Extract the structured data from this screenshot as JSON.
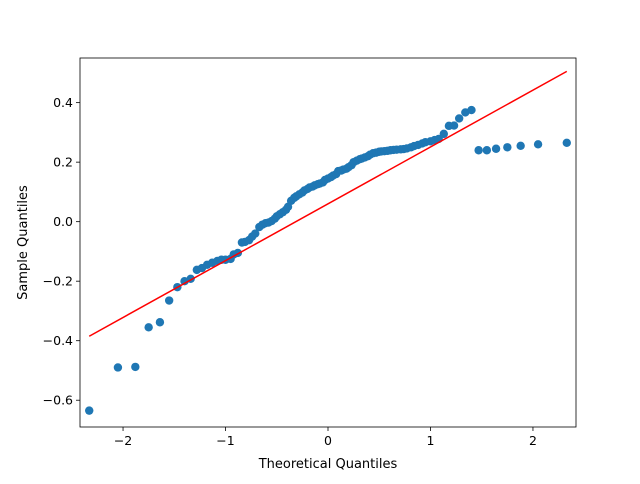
{
  "chart_data": {
    "type": "scatter",
    "title": "",
    "xlabel": "Theoretical Quantiles",
    "ylabel": "Sample Quantiles",
    "xlim": [
      -2.42,
      2.42
    ],
    "ylim": [
      -0.69,
      0.55
    ],
    "xticks": [
      -2,
      -1,
      0,
      1,
      2
    ],
    "xtick_labels": [
      "−2",
      "−1",
      "0",
      "1",
      "2"
    ],
    "yticks": [
      -0.6,
      -0.4,
      -0.2,
      0.0,
      0.2,
      0.4
    ],
    "ytick_labels": [
      "−0.6",
      "−0.4",
      "−0.2",
      "0.0",
      "0.2",
      "0.4"
    ],
    "grid": false,
    "legend": "none",
    "series": [
      {
        "kind": "points",
        "color": "#1f77b4",
        "x": [
          -2.33,
          -2.05,
          -1.88,
          -1.75,
          -1.64,
          -1.55,
          -1.47,
          -1.4,
          -1.34,
          -1.28,
          -1.23,
          -1.18,
          -1.13,
          -1.08,
          -1.04,
          -1.0,
          -0.95,
          -0.92,
          -0.88,
          -0.84,
          -0.81,
          -0.77,
          -0.74,
          -0.71,
          -0.67,
          -0.64,
          -0.61,
          -0.58,
          -0.55,
          -0.52,
          -0.5,
          -0.47,
          -0.44,
          -0.41,
          -0.39,
          -0.36,
          -0.33,
          -0.31,
          -0.28,
          -0.25,
          -0.23,
          -0.2,
          -0.18,
          -0.15,
          -0.13,
          -0.1,
          -0.08,
          -0.05,
          -0.03,
          0.0,
          0.03,
          0.05,
          0.08,
          0.1,
          0.13,
          0.15,
          0.18,
          0.2,
          0.23,
          0.25,
          0.28,
          0.31,
          0.33,
          0.36,
          0.39,
          0.41,
          0.44,
          0.47,
          0.5,
          0.52,
          0.55,
          0.58,
          0.61,
          0.64,
          0.67,
          0.71,
          0.74,
          0.77,
          0.81,
          0.84,
          0.88,
          0.92,
          0.95,
          1.0,
          1.04,
          1.08,
          1.13,
          1.18,
          1.23,
          1.28,
          1.34,
          1.4,
          1.47,
          1.55,
          1.64,
          1.75,
          1.88,
          2.05,
          2.33
        ],
        "y": [
          -0.635,
          -0.49,
          -0.488,
          -0.355,
          -0.338,
          -0.265,
          -0.22,
          -0.2,
          -0.192,
          -0.162,
          -0.156,
          -0.145,
          -0.138,
          -0.132,
          -0.128,
          -0.128,
          -0.125,
          -0.11,
          -0.105,
          -0.07,
          -0.068,
          -0.062,
          -0.05,
          -0.04,
          -0.018,
          -0.01,
          -0.005,
          -0.003,
          0.002,
          0.01,
          0.018,
          0.025,
          0.032,
          0.04,
          0.05,
          0.07,
          0.08,
          0.085,
          0.092,
          0.098,
          0.105,
          0.11,
          0.115,
          0.118,
          0.122,
          0.126,
          0.128,
          0.132,
          0.14,
          0.145,
          0.15,
          0.155,
          0.16,
          0.17,
          0.172,
          0.175,
          0.178,
          0.183,
          0.19,
          0.2,
          0.205,
          0.21,
          0.212,
          0.216,
          0.22,
          0.225,
          0.23,
          0.232,
          0.235,
          0.236,
          0.237,
          0.238,
          0.24,
          0.241,
          0.242,
          0.243,
          0.244,
          0.246,
          0.25,
          0.254,
          0.258,
          0.263,
          0.267,
          0.27,
          0.274,
          0.278,
          0.295,
          0.322,
          0.323,
          0.347,
          0.367,
          0.375,
          0.24,
          0.24,
          0.245,
          0.25,
          0.255,
          0.26,
          0.265
        ]
      },
      {
        "kind": "line",
        "color": "#ff0000",
        "x": [
          -2.33,
          2.33
        ],
        "y": [
          -0.385,
          0.505
        ]
      }
    ]
  }
}
